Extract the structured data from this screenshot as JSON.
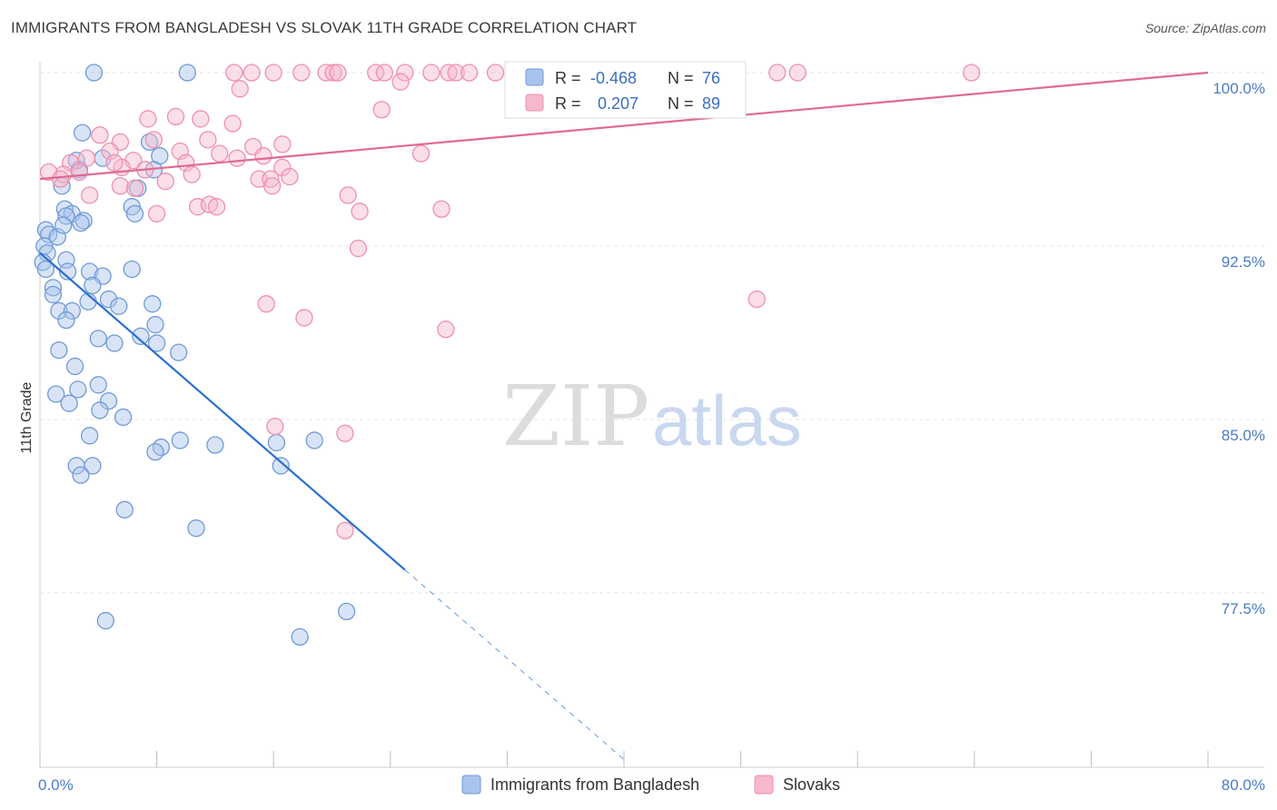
{
  "title": "IMMIGRANTS FROM BANGLADESH VS SLOVAK 11TH GRADE CORRELATION CHART",
  "source": "Source: ZipAtlas.com",
  "watermark": {
    "zip": "ZIP",
    "atlas": "atlas"
  },
  "colors": {
    "blue_fill": "#a9c4ec",
    "blue_stroke": "#6f9ad8",
    "blue_line": "#2a6fd1",
    "pink_fill": "#f6b8cc",
    "pink_stroke": "#ef8fae",
    "pink_line": "#e06a94",
    "grid": "#e3e3e3",
    "tick_label": "#4a7cc7"
  },
  "legend_stats": [
    {
      "r_label": "R =",
      "r_value": "-0.468",
      "n_label": "N =",
      "n_value": "76",
      "series": "blue"
    },
    {
      "r_label": "R =",
      "r_value": "0.207",
      "n_label": "N =",
      "n_value": "89",
      "series": "pink"
    }
  ],
  "chart_data": {
    "type": "scatter",
    "title": "IMMIGRANTS FROM BANGLADESH VS SLOVAK 11TH GRADE CORRELATION CHART",
    "xlabel": "",
    "ylabel": "11th Grade",
    "xlim": [
      0,
      80
    ],
    "ylim": [
      70.0,
      101.5
    ],
    "x_tick_labels": [
      {
        "value": 0,
        "label": "0.0%"
      },
      {
        "value": 80,
        "label": "80.0%"
      }
    ],
    "y_tick_labels": [
      {
        "value": 100.0,
        "label": "100.0%"
      },
      {
        "value": 92.5,
        "label": "92.5%"
      },
      {
        "value": 85.0,
        "label": "85.0%"
      },
      {
        "value": 77.5,
        "label": "77.5%"
      }
    ],
    "grid": true,
    "legend_position": "bottom",
    "series": [
      {
        "name": "Immigrants from Bangladesh",
        "color": "blue",
        "trend": {
          "x": [
            0,
            25
          ],
          "y": [
            92.2,
            78.5
          ],
          "dashed_extension_to": [
            40,
            70.3
          ]
        },
        "points": [
          [
            3.7,
            100.0
          ],
          [
            10.1,
            100.0
          ],
          [
            2.9,
            97.4
          ],
          [
            4.3,
            96.3
          ],
          [
            7.5,
            97.0
          ],
          [
            8.2,
            96.4
          ],
          [
            2.5,
            96.2
          ],
          [
            2.7,
            95.8
          ],
          [
            6.7,
            95.0
          ],
          [
            1.5,
            95.1
          ],
          [
            7.8,
            95.8
          ],
          [
            1.7,
            94.1
          ],
          [
            2.2,
            93.9
          ],
          [
            1.8,
            93.8
          ],
          [
            6.3,
            94.2
          ],
          [
            3.0,
            93.6
          ],
          [
            2.8,
            93.5
          ],
          [
            6.5,
            93.9
          ],
          [
            0.4,
            93.2
          ],
          [
            0.6,
            93.0
          ],
          [
            1.2,
            92.9
          ],
          [
            1.6,
            93.4
          ],
          [
            0.3,
            92.5
          ],
          [
            0.5,
            92.2
          ],
          [
            0.2,
            91.8
          ],
          [
            0.4,
            91.5
          ],
          [
            1.8,
            91.9
          ],
          [
            1.9,
            91.4
          ],
          [
            3.4,
            91.4
          ],
          [
            4.3,
            91.2
          ],
          [
            6.3,
            91.5
          ],
          [
            0.9,
            90.7
          ],
          [
            0.9,
            90.4
          ],
          [
            3.6,
            90.8
          ],
          [
            3.3,
            90.1
          ],
          [
            4.7,
            90.2
          ],
          [
            5.4,
            89.9
          ],
          [
            7.7,
            90.0
          ],
          [
            1.3,
            89.7
          ],
          [
            2.2,
            89.7
          ],
          [
            1.8,
            89.3
          ],
          [
            7.9,
            89.1
          ],
          [
            4.0,
            88.5
          ],
          [
            5.1,
            88.3
          ],
          [
            6.9,
            88.6
          ],
          [
            8.0,
            88.3
          ],
          [
            9.5,
            87.9
          ],
          [
            1.3,
            88.0
          ],
          [
            2.4,
            87.3
          ],
          [
            4.0,
            86.5
          ],
          [
            2.6,
            86.3
          ],
          [
            1.1,
            86.1
          ],
          [
            2.0,
            85.7
          ],
          [
            4.7,
            85.8
          ],
          [
            4.1,
            85.4
          ],
          [
            5.7,
            85.1
          ],
          [
            3.4,
            84.3
          ],
          [
            9.6,
            84.1
          ],
          [
            8.3,
            83.8
          ],
          [
            12.0,
            83.9
          ],
          [
            7.9,
            83.6
          ],
          [
            16.2,
            84.0
          ],
          [
            18.8,
            84.1
          ],
          [
            2.5,
            83.0
          ],
          [
            3.6,
            83.0
          ],
          [
            16.5,
            83.0
          ],
          [
            2.8,
            82.6
          ],
          [
            5.8,
            81.1
          ],
          [
            10.7,
            80.3
          ],
          [
            4.5,
            76.3
          ],
          [
            21.0,
            76.7
          ],
          [
            17.8,
            75.6
          ]
        ]
      },
      {
        "name": "Slovaks",
        "color": "pink",
        "trend": {
          "x": [
            0,
            80
          ],
          "y": [
            95.4,
            100.0
          ]
        },
        "points": [
          [
            13.3,
            100.0
          ],
          [
            14.5,
            100.0
          ],
          [
            16.0,
            100.0
          ],
          [
            17.9,
            100.0
          ],
          [
            19.6,
            100.0
          ],
          [
            20.1,
            100.0
          ],
          [
            20.4,
            100.0
          ],
          [
            23.0,
            100.0
          ],
          [
            23.6,
            100.0
          ],
          [
            25.0,
            100.0
          ],
          [
            26.8,
            100.0
          ],
          [
            28.0,
            100.0
          ],
          [
            28.5,
            100.0
          ],
          [
            29.4,
            100.0
          ],
          [
            31.2,
            100.0
          ],
          [
            33.2,
            100.0
          ],
          [
            35.5,
            100.0
          ],
          [
            37.0,
            100.0
          ],
          [
            40.6,
            100.0
          ],
          [
            50.5,
            100.0
          ],
          [
            51.9,
            100.0
          ],
          [
            63.8,
            100.0
          ],
          [
            24.7,
            99.6
          ],
          [
            13.7,
            99.3
          ],
          [
            23.4,
            98.4
          ],
          [
            7.4,
            98.0
          ],
          [
            9.3,
            98.1
          ],
          [
            11.0,
            98.0
          ],
          [
            13.2,
            97.8
          ],
          [
            4.1,
            97.3
          ],
          [
            5.5,
            97.0
          ],
          [
            7.8,
            97.1
          ],
          [
            11.5,
            97.1
          ],
          [
            14.6,
            96.8
          ],
          [
            16.6,
            96.9
          ],
          [
            4.8,
            96.6
          ],
          [
            9.6,
            96.6
          ],
          [
            12.3,
            96.5
          ],
          [
            6.4,
            96.2
          ],
          [
            10.0,
            96.1
          ],
          [
            13.5,
            96.3
          ],
          [
            15.3,
            96.4
          ],
          [
            26.1,
            96.5
          ],
          [
            2.1,
            96.1
          ],
          [
            3.2,
            96.3
          ],
          [
            5.6,
            95.9
          ],
          [
            5.1,
            96.1
          ],
          [
            7.2,
            95.8
          ],
          [
            10.4,
            95.6
          ],
          [
            16.6,
            95.9
          ],
          [
            2.7,
            95.7
          ],
          [
            1.6,
            95.6
          ],
          [
            0.6,
            95.7
          ],
          [
            1.4,
            95.4
          ],
          [
            8.6,
            95.3
          ],
          [
            15.0,
            95.4
          ],
          [
            15.8,
            95.4
          ],
          [
            17.1,
            95.5
          ],
          [
            5.5,
            95.1
          ],
          [
            6.5,
            95.0
          ],
          [
            15.9,
            95.1
          ],
          [
            3.4,
            94.7
          ],
          [
            21.1,
            94.7
          ],
          [
            10.8,
            94.2
          ],
          [
            11.6,
            94.3
          ],
          [
            12.1,
            94.2
          ],
          [
            8.0,
            93.9
          ],
          [
            21.9,
            94.0
          ],
          [
            27.5,
            94.1
          ],
          [
            21.8,
            92.4
          ],
          [
            15.5,
            90.0
          ],
          [
            49.1,
            90.2
          ],
          [
            18.1,
            89.4
          ],
          [
            27.8,
            88.9
          ],
          [
            16.1,
            84.7
          ],
          [
            20.9,
            84.4
          ],
          [
            20.9,
            80.2
          ]
        ]
      }
    ]
  }
}
